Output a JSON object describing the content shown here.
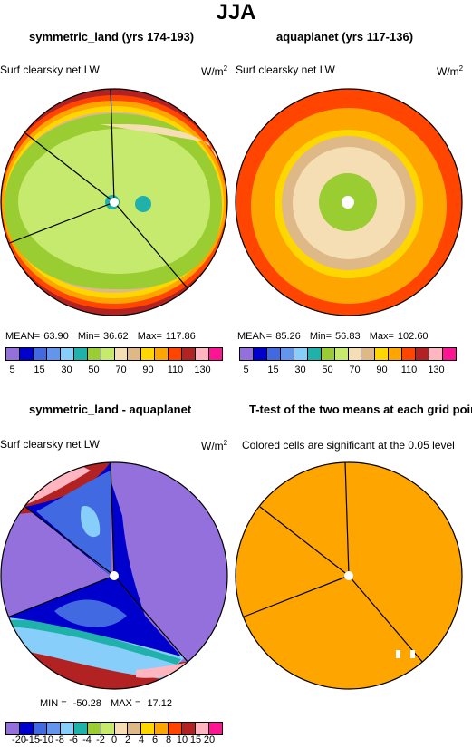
{
  "main_title": "JJA",
  "panels": [
    {
      "title": "symmetric_land (yrs 174-193)",
      "left_label": "Surf clearsky net LW",
      "units": "W/m",
      "units_sup": "2",
      "stats": {
        "mean_label": "MEAN=",
        "mean": "63.90",
        "min_label": "Min=",
        "min": "36.62",
        "max_label": "Max=",
        "max": "117.86"
      }
    },
    {
      "title": "aquaplanet (yrs 117-136)",
      "left_label": "Surf clearsky net LW",
      "units": "W/m",
      "units_sup": "2",
      "stats": {
        "mean_label": "MEAN=",
        "mean": "85.26",
        "min_label": "Min=",
        "min": "56.83",
        "max_label": "Max=",
        "max": "102.60"
      }
    },
    {
      "title": "symmetric_land - aquaplanet",
      "left_label": "Surf clearsky net LW",
      "units": "W/m",
      "units_sup": "2",
      "stats": {
        "min_label": "MIN =",
        "min": "-50.28",
        "max_label": "MAX =",
        "max": "17.12"
      }
    },
    {
      "title": "T-test of the two means at each grid point",
      "note": "Colored cells are significant at the 0.05 level"
    }
  ],
  "colorbar_main": {
    "colors": [
      "#9370db",
      "#0000cd",
      "#4169e1",
      "#6495ed",
      "#87cefa",
      "#20b2aa",
      "#9acd32",
      "#c5ea6e",
      "#f5deb3",
      "#deb887",
      "#ffd700",
      "#ffa500",
      "#ff4500",
      "#b22222",
      "#ffb6c1",
      "#ff1493"
    ],
    "ticks": [
      "5",
      "15",
      "30",
      "50",
      "70",
      "90",
      "110",
      "130"
    ]
  },
  "colorbar_diff": {
    "colors": [
      "#9370db",
      "#0000cd",
      "#4169e1",
      "#6495ed",
      "#87cefa",
      "#20b2aa",
      "#9acd32",
      "#c5ea6e",
      "#f5deb3",
      "#deb887",
      "#ffd700",
      "#ffa500",
      "#ff4500",
      "#b22222",
      "#ffb6c1",
      "#ff1493"
    ],
    "ticks": [
      "-20",
      "-15",
      "-10",
      "-8",
      "-6",
      "-4",
      "-2",
      "0",
      "2",
      "4",
      "6",
      "8",
      "10",
      "15",
      "20"
    ]
  },
  "colors": {
    "ttest_fill": "#ffa500",
    "outline": "#000000"
  }
}
